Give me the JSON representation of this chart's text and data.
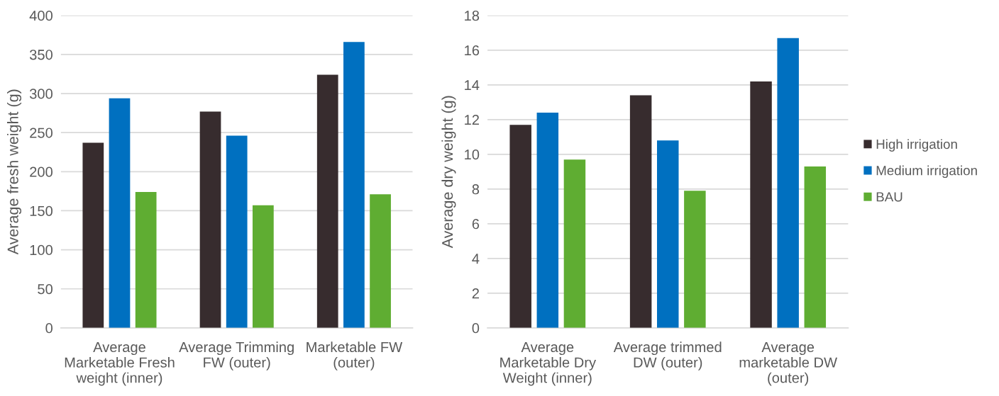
{
  "chart_data": [
    {
      "type": "bar",
      "categories": [
        "Average\nMarketable Fresh\nweight (inner)",
        "Average Trimming\nFW (outer)",
        "Marketable FW\n(outer)"
      ],
      "ylabel": "Average fresh weight (g)",
      "ylim": [
        0,
        400
      ],
      "yticks": [
        0,
        50,
        100,
        150,
        200,
        250,
        300,
        350,
        400
      ],
      "grid": "y",
      "legend": false,
      "series": [
        {
          "color": "#372c2e",
          "values": [
            237,
            277,
            324
          ]
        },
        {
          "color": "#0070c0",
          "values": [
            294,
            246,
            366
          ]
        },
        {
          "color": "#5fad32",
          "values": [
            174,
            157,
            171
          ]
        }
      ]
    },
    {
      "type": "bar",
      "categories": [
        "Average\nMarketable Dry\nWeight (inner)",
        "Average trimmed\nDW (outer)",
        "Average\nmarketable DW\n(outer)"
      ],
      "ylabel": "Average dry weight (g)",
      "ylim": [
        0,
        18
      ],
      "yticks": [
        0,
        2,
        4,
        6,
        8,
        10,
        12,
        14,
        16,
        18
      ],
      "grid": "y",
      "legend": "right",
      "series": [
        {
          "name": "High irrigation",
          "color": "#372c2e",
          "values": [
            11.7,
            13.4,
            14.2
          ]
        },
        {
          "name": "Medium irrigation",
          "color": "#0070c0",
          "values": [
            12.4,
            10.8,
            16.7
          ]
        },
        {
          "name": "BAU",
          "color": "#5fad32",
          "values": [
            9.7,
            7.9,
            9.3
          ]
        }
      ]
    }
  ]
}
